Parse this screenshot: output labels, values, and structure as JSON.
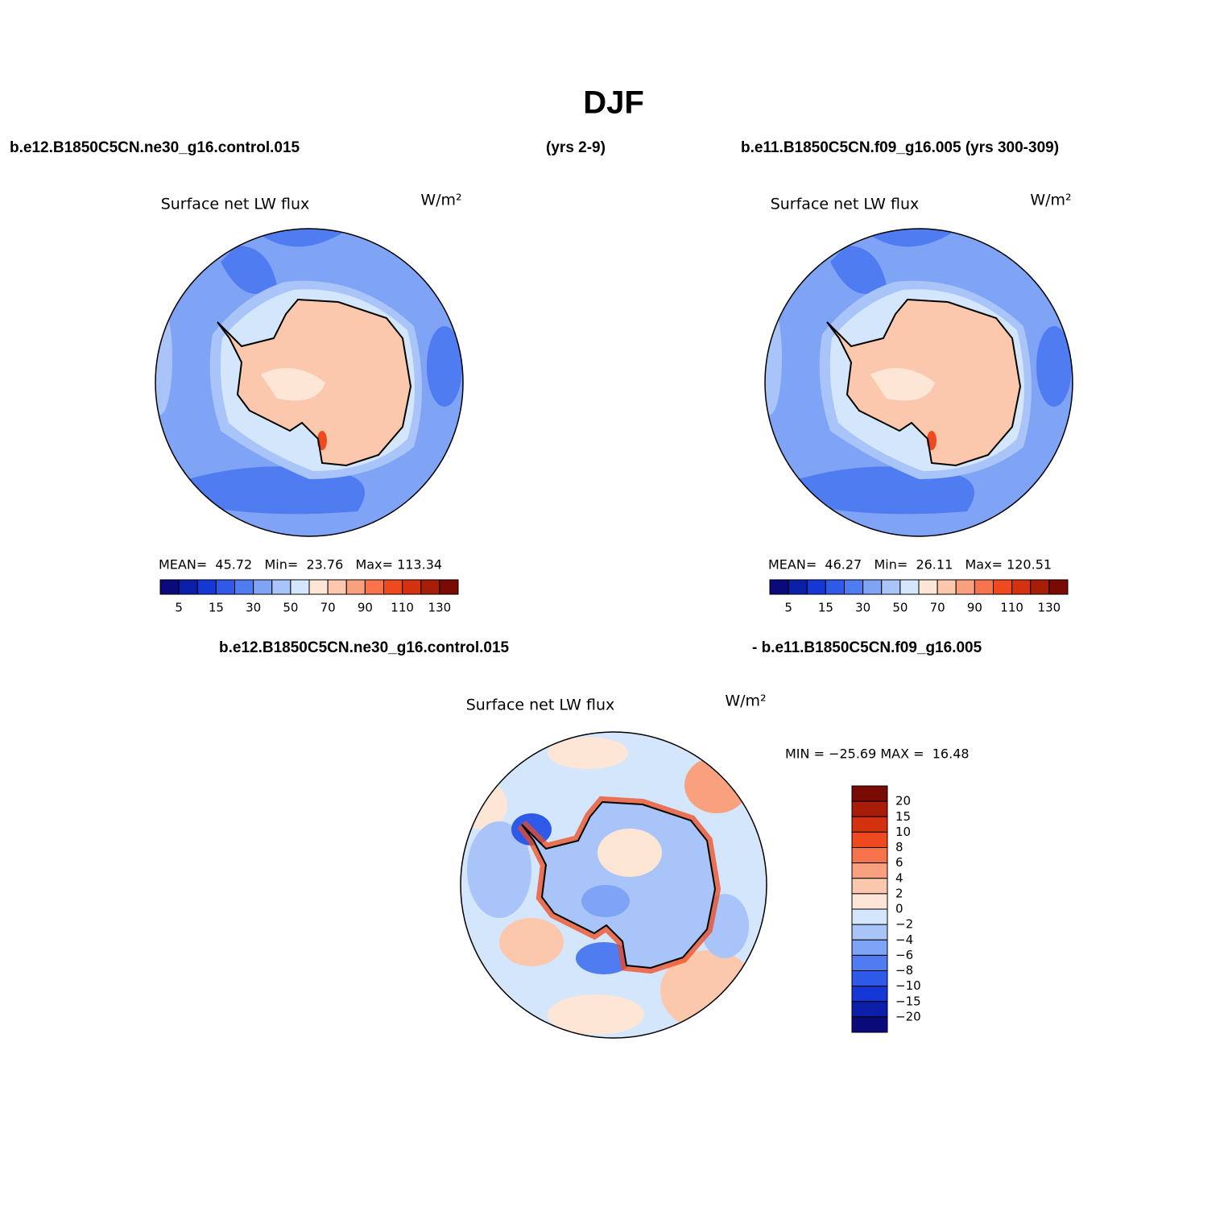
{
  "title": "DJF",
  "panels": [
    {
      "case": "b.e12.B1850C5CN.ne30_g16.control.015",
      "years": "(yrs 2-9)",
      "variable": "Surface net LW flux",
      "units": "W/m²",
      "stats": "MEAN=  45.72   Min=  23.76   Max= 113.34",
      "colorbar": {
        "colors": [
          "#0a0a7a",
          "#0b1fa8",
          "#1437d6",
          "#2f5ae8",
          "#4f7cf0",
          "#7fa3f5",
          "#a9c4f8",
          "#d4e6fb",
          "#fde6d6",
          "#fcc8ad",
          "#f9a17f",
          "#f6734c",
          "#ef4a1f",
          "#d4310e",
          "#a71d08",
          "#7a0a04"
        ],
        "labels": [
          "5",
          "15",
          "30",
          "50",
          "70",
          "90",
          "110",
          "130"
        ]
      }
    },
    {
      "case": "b.e11.B1850C5CN.f09_g16.005 (yrs 300-309)",
      "variable": "Surface net LW flux",
      "units": "W/m²",
      "stats": "MEAN=  46.27   Min=  26.11   Max= 120.51",
      "colorbar": {
        "colors": [
          "#0a0a7a",
          "#0b1fa8",
          "#1437d6",
          "#2f5ae8",
          "#4f7cf0",
          "#7fa3f5",
          "#a9c4f8",
          "#d4e6fb",
          "#fde6d6",
          "#fcc8ad",
          "#f9a17f",
          "#f6734c",
          "#ef4a1f",
          "#d4310e",
          "#a71d08",
          "#7a0a04"
        ],
        "labels": [
          "5",
          "15",
          "30",
          "50",
          "70",
          "90",
          "110",
          "130"
        ]
      }
    },
    {
      "case": "b.e12.B1850C5CN.ne30_g16.control.015",
      "case_minus": "- b.e11.B1850C5CN.f09_g16.005",
      "variable": "Surface net LW flux",
      "units": "W/m²",
      "stats": "MIN = −25.69 MAX =  16.48",
      "colorbar": {
        "colors": [
          "#7a0a04",
          "#a71d08",
          "#d4310e",
          "#ef4a1f",
          "#f6734c",
          "#f9a17f",
          "#fcc8ad",
          "#fde6d6",
          "#d4e6fb",
          "#a9c4f8",
          "#7fa3f5",
          "#4f7cf0",
          "#2f5ae8",
          "#1437d6",
          "#0b1fa8",
          "#0a0a7a"
        ],
        "labels": [
          "20",
          "15",
          "10",
          "8",
          "6",
          "4",
          "2",
          "0",
          "−2",
          "−4",
          "−6",
          "−8",
          "−10",
          "−15",
          "−20"
        ]
      }
    }
  ]
}
